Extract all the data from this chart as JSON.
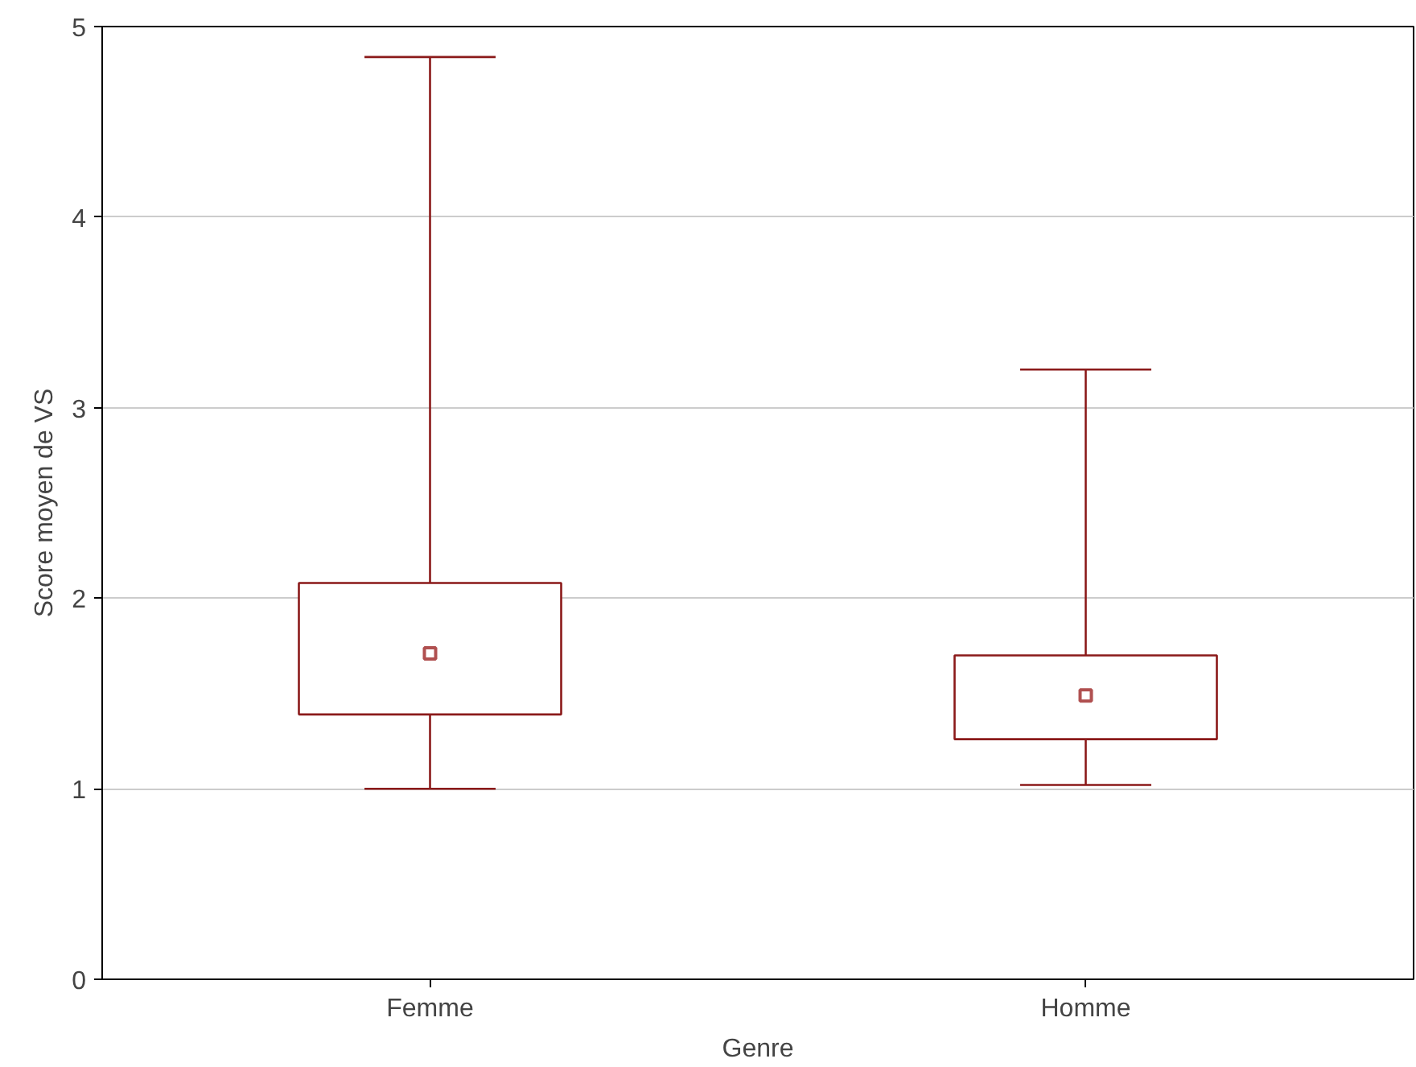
{
  "chart_data": {
    "type": "box",
    "categories": [
      "Femme",
      "Homme"
    ],
    "boxes": [
      {
        "low": 1.0,
        "q1": 1.39,
        "median": 1.71,
        "q3": 2.08,
        "high": 4.84
      },
      {
        "low": 1.02,
        "q1": 1.26,
        "median": 1.49,
        "q3": 1.7,
        "high": 3.2
      }
    ],
    "color": "#8b1a1a",
    "xlabel": "Genre",
    "ylabel": "Score moyen de VS",
    "ylim": [
      0,
      5
    ],
    "yticks": [
      0,
      1,
      2,
      3,
      4,
      5
    ],
    "grid": "y",
    "marker": "square"
  }
}
